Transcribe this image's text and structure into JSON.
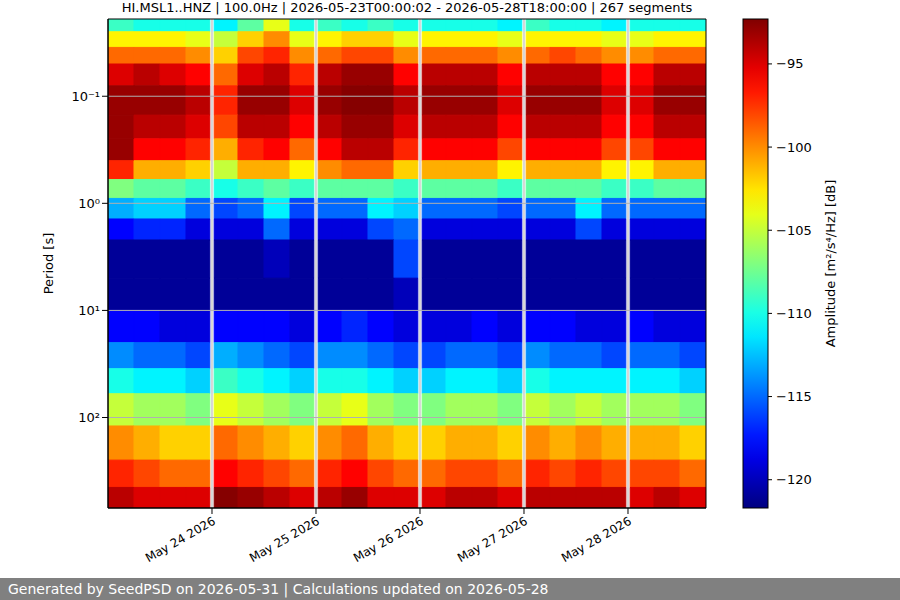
{
  "chart_data": {
    "type": "heatmap",
    "title": "HI.MSL1..HNZ | 100.0Hz | 2026-05-23T00:00:02 - 2026-05-28T18:00:00 | 267 segments",
    "y_label": "Period [s]",
    "footer": "Generated by SeedPSD on 2026-05-31 | Calculations updated on 2026-05-28",
    "log": "y",
    "grid": true,
    "xlim": [
      "2026-05-23T00:00:02",
      "2026-05-28T18:00:00"
    ],
    "xticks": [
      {
        "value": "2026-05-24T00:00",
        "label": "May 24 2026"
      },
      {
        "value": "2026-05-25T00:00",
        "label": "May 25 2026"
      },
      {
        "value": "2026-05-26T00:00",
        "label": "May 26 2026"
      },
      {
        "value": "2026-05-27T00:00",
        "label": "May 27 2026"
      },
      {
        "value": "2026-05-28T00:00",
        "label": "May 28 2026"
      }
    ],
    "ylim": [
      0.019,
      700
    ],
    "yticks": [
      {
        "value": 0.1,
        "label": "10⁻¹"
      },
      {
        "value": 1,
        "label": "10⁰"
      },
      {
        "value": 10,
        "label": "10¹"
      },
      {
        "value": 100,
        "label": "10²"
      }
    ],
    "time_edges": [
      "2026-05-23T00:00:02",
      "2026-05-23T06:00",
      "2026-05-23T12:00",
      "2026-05-23T18:00",
      "2026-05-23T23:30",
      "2026-05-24T00:30",
      "2026-05-24T06:00",
      "2026-05-24T12:00",
      "2026-05-24T18:00",
      "2026-05-24T23:30",
      "2026-05-25T00:30",
      "2026-05-25T06:00",
      "2026-05-25T12:00",
      "2026-05-25T18:00",
      "2026-05-25T23:30",
      "2026-05-26T00:30",
      "2026-05-26T06:00",
      "2026-05-26T12:00",
      "2026-05-26T18:00",
      "2026-05-26T23:30",
      "2026-05-27T00:30",
      "2026-05-27T06:00",
      "2026-05-27T12:00",
      "2026-05-27T18:00",
      "2026-05-27T23:30",
      "2026-05-28T00:30",
      "2026-05-28T06:00",
      "2026-05-28T12:00",
      "2026-05-28T18:00:00"
    ],
    "period_edges": [
      0.019,
      0.025,
      0.035,
      0.05,
      0.08,
      0.15,
      0.25,
      0.4,
      0.6,
      0.9,
      1.4,
      2.2,
      5,
      10,
      20,
      35,
      60,
      120,
      250,
      450,
      700
    ],
    "values": [
      [
        -109,
        -110,
        -110,
        -110,
        null,
        -111,
        -108,
        -104,
        -110,
        null,
        -109,
        -110,
        -109,
        -110,
        null,
        -110,
        -110,
        -110,
        -111,
        null,
        -109,
        -110,
        -110,
        -111,
        null,
        -110,
        -110,
        -110
      ],
      [
        -103,
        -103,
        -103,
        -104,
        null,
        -105,
        -102,
        -100,
        -104,
        null,
        -103,
        -102,
        -102,
        -104,
        null,
        -103,
        -103,
        -103,
        -104,
        null,
        -103,
        -103,
        -103,
        -104,
        null,
        -104,
        -103,
        -103
      ],
      [
        -99,
        -99,
        -99,
        -100,
        null,
        -102,
        -98,
        -97,
        -100,
        null,
        -99,
        -98,
        -98,
        -100,
        null,
        -99,
        -99,
        -99,
        -100,
        null,
        -99,
        -98,
        -99,
        -100,
        null,
        -100,
        -99,
        -99
      ],
      [
        -95,
        -94,
        -95,
        -96,
        null,
        -99,
        -95,
        -94,
        -97,
        null,
        -94,
        -93,
        -93,
        -96,
        null,
        -94,
        -94,
        -94,
        -96,
        null,
        -94,
        -94,
        -94,
        -96,
        null,
        -96,
        -94,
        -94
      ],
      [
        -93,
        -93,
        -93,
        -94,
        null,
        -97,
        -93,
        -93,
        -95,
        null,
        -93,
        -92.5,
        -92.5,
        -94,
        null,
        -93,
        -93,
        -93,
        -95,
        null,
        -93,
        -93,
        -93,
        -95,
        null,
        -95,
        -93,
        -93
      ],
      [
        -93,
        -94,
        -94,
        -95,
        null,
        -98,
        -94,
        -94,
        -96,
        null,
        -94,
        -93,
        -93,
        -95,
        null,
        -94,
        -94,
        -94,
        -96,
        null,
        -94,
        -94,
        -94,
        -96,
        null,
        -96,
        -94,
        -94
      ],
      [
        -93,
        -96,
        -96,
        -97,
        null,
        -101,
        -97,
        -96,
        -99,
        null,
        -96,
        -94,
        -94,
        -97,
        null,
        -96,
        -96,
        -96,
        -98,
        null,
        -96,
        -96,
        -96,
        -98,
        null,
        -98,
        -96,
        -96
      ],
      [
        -97,
        -101,
        -101,
        -102,
        null,
        -105,
        -101,
        -101,
        -103,
        null,
        -100,
        -99,
        -99,
        -102,
        null,
        -101,
        -101,
        -101,
        -103,
        null,
        -101,
        -101,
        -101,
        -103,
        null,
        -103,
        -101,
        -101
      ],
      [
        -107,
        -108,
        -108,
        -109,
        null,
        -110,
        -109,
        -108,
        -109,
        null,
        -108,
        -108,
        -108,
        -109,
        null,
        -108,
        -108,
        -108,
        -109,
        null,
        -108,
        -108,
        -108,
        -109,
        null,
        -109,
        -108,
        -108
      ],
      [
        -113,
        -112,
        -112,
        -115,
        null,
        -116,
        -115,
        -111,
        -116,
        null,
        -115,
        -115,
        -111,
        -112,
        null,
        -115,
        -115,
        -115,
        -116,
        null,
        -115,
        -115,
        -111,
        -115,
        null,
        -115,
        -115,
        -115
      ],
      [
        -118,
        -117,
        -117,
        -119,
        null,
        -119,
        -119,
        -115,
        -119,
        null,
        -119,
        -119,
        -116,
        -115,
        null,
        -119,
        -119,
        -119,
        -119,
        null,
        -119,
        -119,
        -116,
        -119,
        null,
        -119,
        -119,
        -119
      ],
      [
        -121,
        -121,
        -121,
        -121,
        null,
        -121,
        -121,
        -120,
        -121,
        null,
        -121,
        -121,
        -121,
        -116,
        null,
        -121,
        -121,
        -121,
        -121,
        null,
        -121,
        -121,
        -121,
        -121,
        null,
        -121,
        -121,
        -121
      ],
      [
        -121,
        -121,
        -121,
        -121,
        null,
        -121,
        -121,
        -121,
        -121,
        null,
        -121,
        -121,
        -121,
        -120,
        null,
        -121,
        -121,
        -121,
        -121,
        null,
        -121,
        -121,
        -121,
        -121,
        null,
        -121,
        -121,
        -121
      ],
      [
        -118,
        -118,
        -119,
        -119,
        null,
        -118,
        -118,
        -118,
        -119,
        null,
        -118,
        -117,
        -118,
        -119,
        null,
        -119,
        -119,
        -118,
        -119,
        null,
        -118,
        -118,
        -119,
        -119,
        null,
        -118,
        -119,
        -119
      ],
      [
        -114,
        -115,
        -115,
        -116,
        null,
        -113,
        -114,
        -115,
        -116,
        null,
        -114,
        -114,
        -115,
        -116,
        null,
        -116,
        -115,
        -115,
        -116,
        null,
        -114,
        -115,
        -115,
        -116,
        null,
        -115,
        -115,
        -116
      ],
      [
        -110,
        -111,
        -111,
        -112,
        null,
        -109,
        -110,
        -111,
        -112,
        null,
        -110,
        -110,
        -111,
        -112,
        null,
        -112,
        -111,
        -111,
        -112,
        null,
        -110,
        -111,
        -111,
        -111,
        null,
        -111,
        -111,
        -112
      ],
      [
        -105,
        -106,
        -106,
        -107,
        null,
        -104,
        -105,
        -106,
        -107,
        null,
        -105,
        -104,
        -106,
        -107,
        null,
        -107,
        -106,
        -106,
        -107,
        null,
        -105,
        -106,
        -105,
        -106,
        null,
        -106,
        -106,
        -107
      ],
      [
        -100,
        -101,
        -102,
        -102,
        null,
        -99,
        -100,
        -101,
        -102,
        null,
        -100,
        -99,
        -101,
        -102,
        null,
        -102,
        -101,
        -101,
        -102,
        null,
        -100,
        -101,
        -100,
        -101,
        null,
        -101,
        -101,
        -102
      ],
      [
        -97,
        -98,
        -99,
        -99,
        null,
        -96,
        -97,
        -98,
        -99,
        null,
        -97,
        -96,
        -98,
        -99,
        null,
        -99,
        -98,
        -98,
        -99,
        null,
        -97,
        -98,
        -97,
        -98,
        null,
        -98,
        -98,
        -99
      ],
      [
        -94,
        -95,
        -95,
        -95,
        null,
        -92.5,
        -93,
        -94,
        -95,
        null,
        -94,
        -93,
        -95,
        -95,
        null,
        -95,
        -94,
        -94,
        -95,
        null,
        -94,
        -94,
        -94,
        -94,
        null,
        -95,
        -94,
        -95
      ]
    ],
    "colorbar": {
      "label": "Amplitude [m²/s⁴/Hz] [dB]",
      "range": [
        -121.7,
        -92.3
      ],
      "ticks": [
        {
          "value": -95,
          "label": "−95"
        },
        {
          "value": -100,
          "label": "−100"
        },
        {
          "value": -105,
          "label": "−105"
        },
        {
          "value": -110,
          "label": "−110"
        },
        {
          "value": -115,
          "label": "−115"
        },
        {
          "value": -120,
          "label": "−120"
        }
      ]
    }
  }
}
